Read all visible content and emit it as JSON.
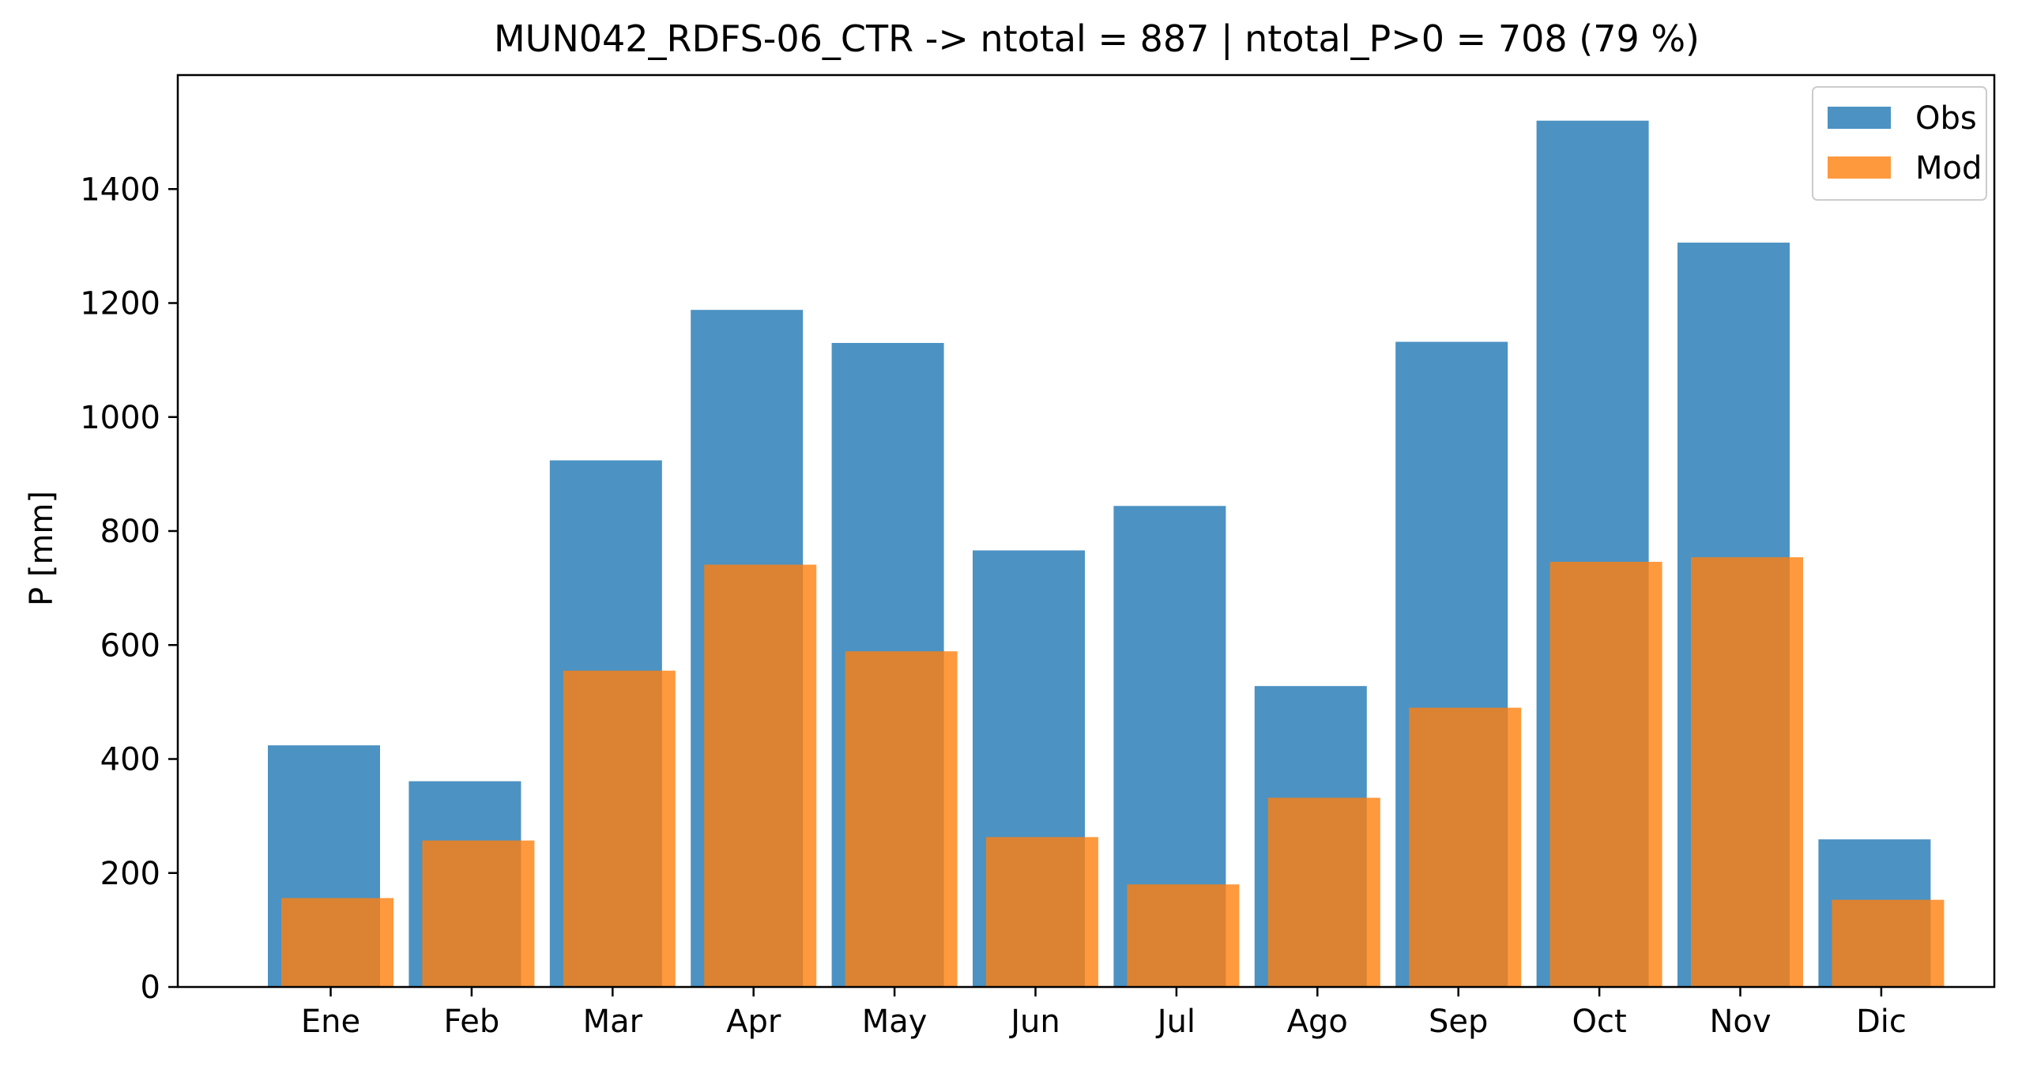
{
  "chart_data": {
    "type": "bar",
    "title": "MUN042_RDFS-06_CTR -> ntotal = 887 | ntotal_P>0 = 708 (79 %)",
    "xlabel": "",
    "ylabel": "P [mm]",
    "ylim": [
      0,
      1600
    ],
    "yticks": [
      0,
      200,
      400,
      600,
      800,
      1000,
      1200,
      1400
    ],
    "grid": false,
    "legend_position": "top-right",
    "categories": [
      "Ene",
      "Feb",
      "Mar",
      "Apr",
      "May",
      "Jun",
      "Jul",
      "Ago",
      "Sep",
      "Oct",
      "Nov",
      "Dic"
    ],
    "series": [
      {
        "name": "Obs",
        "color": "#1f77b4",
        "opacity": 0.8,
        "values": [
          424,
          361,
          924,
          1188,
          1130,
          766,
          844,
          528,
          1132,
          1520,
          1306,
          259
        ]
      },
      {
        "name": "Mod",
        "color": "#ff7f0e",
        "opacity": 0.8,
        "values": [
          156,
          257,
          555,
          741,
          589,
          263,
          180,
          332,
          490,
          746,
          754,
          153
        ]
      }
    ]
  }
}
